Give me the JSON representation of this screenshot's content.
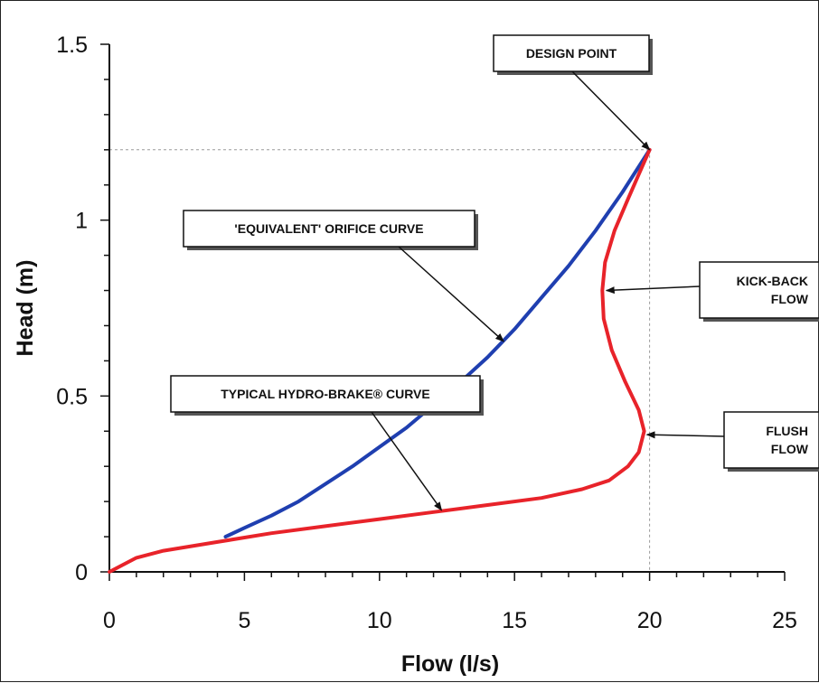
{
  "chart_data": {
    "type": "line",
    "xlabel": "Flow (l/s)",
    "ylabel": "Head (m)",
    "xlim": [
      0,
      25
    ],
    "ylim": [
      0,
      1.5
    ],
    "x_ticks": [
      "0",
      "5",
      "10",
      "15",
      "20",
      "25"
    ],
    "y_ticks": [
      "0",
      "0.5",
      "1",
      "1.5"
    ],
    "grid": false,
    "series": [
      {
        "color": "#1f3fb0",
        "points": [
          [
            4.3,
            0.1
          ],
          [
            5,
            0.125
          ],
          [
            6,
            0.16
          ],
          [
            7,
            0.2
          ],
          [
            8,
            0.25
          ],
          [
            9,
            0.3
          ],
          [
            10,
            0.355
          ],
          [
            11,
            0.41
          ],
          [
            12,
            0.475
          ],
          [
            13,
            0.54
          ],
          [
            14,
            0.61
          ],
          [
            15,
            0.69
          ],
          [
            16,
            0.78
          ],
          [
            17,
            0.87
          ],
          [
            18,
            0.97
          ],
          [
            19,
            1.08
          ],
          [
            20,
            1.2
          ]
        ]
      },
      {
        "color": "#e8232a",
        "points": [
          [
            0,
            0.0
          ],
          [
            1,
            0.04
          ],
          [
            2,
            0.06
          ],
          [
            4,
            0.085
          ],
          [
            6,
            0.11
          ],
          [
            8,
            0.13
          ],
          [
            10,
            0.15
          ],
          [
            12,
            0.17
          ],
          [
            14,
            0.19
          ],
          [
            16,
            0.21
          ],
          [
            17.5,
            0.235
          ],
          [
            18.5,
            0.26
          ],
          [
            19.2,
            0.3
          ],
          [
            19.6,
            0.34
          ],
          [
            19.8,
            0.4
          ],
          [
            19.6,
            0.46
          ],
          [
            19.1,
            0.54
          ],
          [
            18.6,
            0.63
          ],
          [
            18.3,
            0.72
          ],
          [
            18.25,
            0.8
          ],
          [
            18.35,
            0.88
          ],
          [
            18.7,
            0.97
          ],
          [
            19.2,
            1.06
          ],
          [
            19.6,
            1.13
          ],
          [
            20,
            1.2
          ]
        ]
      }
    ],
    "reference_lines": {
      "design_head": 1.2,
      "design_flow": 20
    },
    "annotations": [
      {
        "key": "design",
        "lines": [
          "DESIGN POINT"
        ],
        "target": [
          20,
          1.2
        ]
      },
      {
        "key": "orifice",
        "lines": [
          "'EQUIVALENT' ORIFICE CURVE"
        ],
        "target": [
          14.6,
          0.655
        ]
      },
      {
        "key": "hydrobrake",
        "lines": [
          "TYPICAL HYDRO-BRAKE® CURVE"
        ],
        "target": [
          12.3,
          0.175
        ]
      },
      {
        "key": "kickback",
        "lines": [
          "KICK-BACK",
          "FLOW"
        ],
        "target": [
          18.4,
          0.8
        ]
      },
      {
        "key": "flush",
        "lines": [
          "FLUSH",
          "FLOW"
        ],
        "target": [
          19.9,
          0.39
        ]
      }
    ]
  }
}
